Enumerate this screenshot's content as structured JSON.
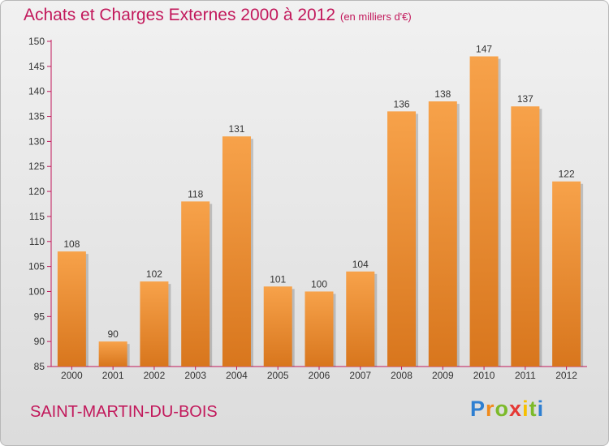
{
  "header": {
    "title": "Achats et Charges Externes 2000 à 2012",
    "unit": "(en milliers d'€)"
  },
  "footer": {
    "town": "SAINT-MARTIN-DU-BOIS",
    "brand": [
      "P",
      "r",
      "o",
      "x",
      "i",
      "t",
      "i"
    ]
  },
  "colors": {
    "accent": "#c2185b",
    "bar_light": "#f7a24a",
    "bar_dark": "#d8761d",
    "axis": "#c2185b"
  },
  "chart_data": {
    "type": "bar",
    "categories": [
      "2000",
      "2001",
      "2002",
      "2003",
      "2004",
      "2005",
      "2006",
      "2007",
      "2008",
      "2009",
      "2010",
      "2011",
      "2012"
    ],
    "values": [
      108,
      90,
      102,
      118,
      131,
      101,
      100,
      104,
      136,
      138,
      147,
      137,
      122
    ],
    "title": "Achats et Charges Externes 2000 à 2012",
    "ylim": [
      85,
      150
    ],
    "yticks": [
      85,
      90,
      95,
      100,
      105,
      110,
      115,
      120,
      125,
      130,
      135,
      140,
      145,
      150
    ],
    "grid": false,
    "legend": "none"
  }
}
